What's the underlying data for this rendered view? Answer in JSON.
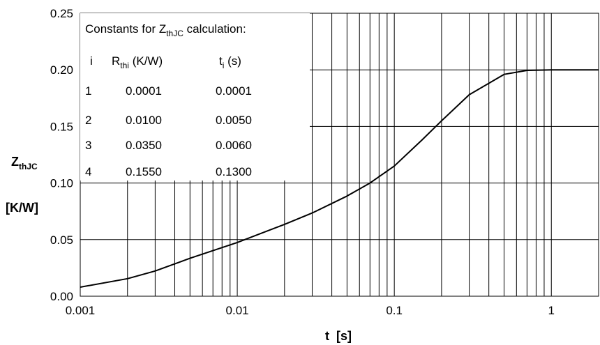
{
  "chart_data": {
    "type": "line",
    "x_scale": "log",
    "xlim": [
      0.001,
      2
    ],
    "ylim": [
      0,
      0.25
    ],
    "x_ticks": [
      "0.001",
      "0.01",
      "0.1",
      "1"
    ],
    "y_ticks": [
      "0.00",
      "0.05",
      "0.10",
      "0.15",
      "0.20",
      "0.25"
    ],
    "xlabel": "t  [s]",
    "ylabel_main": "Z",
    "ylabel_sub": "thJC",
    "ylabel_unit": "[K/W]",
    "grid": true,
    "series": [
      {
        "x": [
          0.001,
          0.002,
          0.003,
          0.005,
          0.01,
          0.02,
          0.03,
          0.05,
          0.07,
          0.1,
          0.15,
          0.2,
          0.3,
          0.5,
          0.7,
          1,
          2
        ],
        "y": [
          0.008,
          0.0155,
          0.0223,
          0.0335,
          0.0475,
          0.0635,
          0.0735,
          0.0885,
          0.1,
          0.115,
          0.138,
          0.155,
          0.178,
          0.196,
          0.1995,
          0.2,
          0.2
        ]
      }
    ],
    "constants_table": {
      "title_main": "Constants for Z",
      "title_sub": "thJC",
      "title_suffix": " calculation:",
      "headers": {
        "i": "i",
        "r_main": "R",
        "r_sub": "thi",
        "r_unit": " (K/W)",
        "t_main": "t",
        "t_sub": "i",
        "t_unit": " (s)"
      },
      "rows": [
        {
          "i": "1",
          "r": "0.0001",
          "t": "0.0001"
        },
        {
          "i": "2",
          "r": "0.0100",
          "t": "0.0050"
        },
        {
          "i": "3",
          "r": "0.0350",
          "t": "0.0060"
        },
        {
          "i": "4",
          "r": "0.1550",
          "t": "0.1300"
        }
      ]
    }
  }
}
